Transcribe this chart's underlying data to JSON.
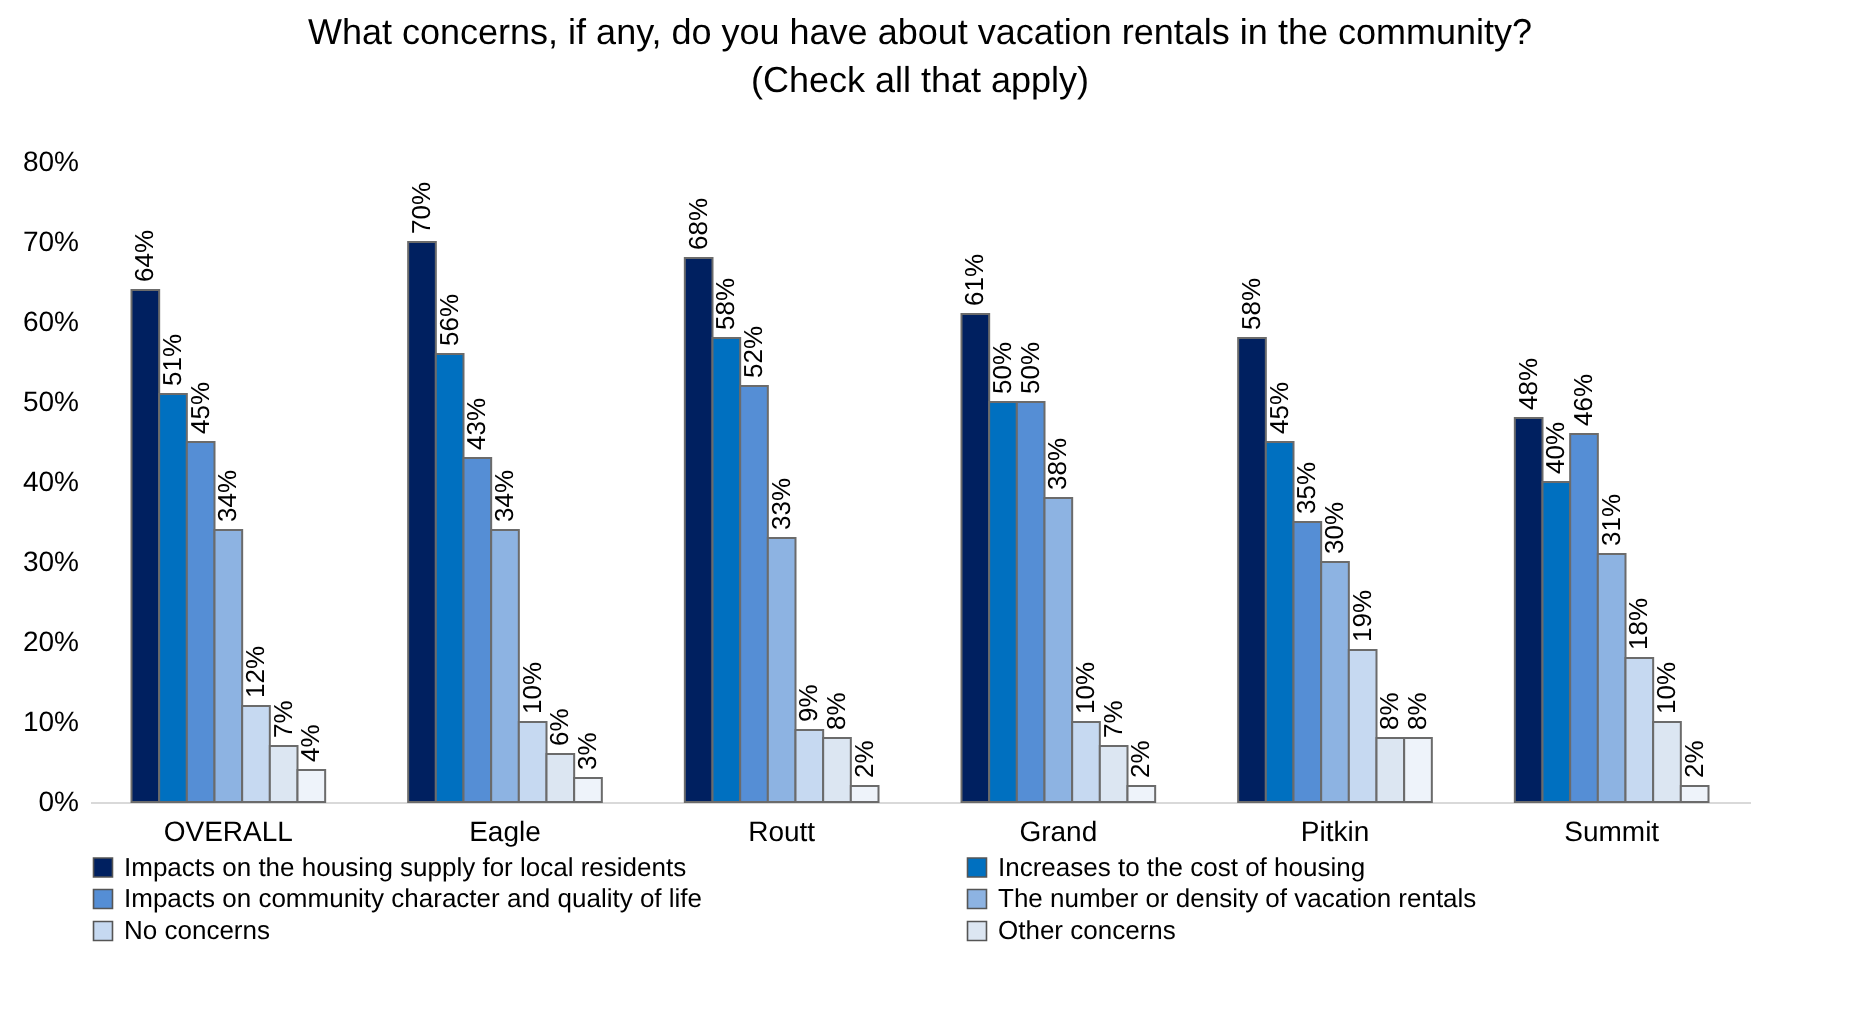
{
  "chart_data": {
    "type": "bar",
    "title": "What concerns, if any, do you have about vacation rentals in the community?",
    "subtitle": "(Check all that apply)",
    "categories": [
      "OVERALL",
      "Eagle",
      "Routt",
      "Grand",
      "Pitkin",
      "Summit"
    ],
    "series": [
      {
        "name": "Impacts on the housing supply for local residents",
        "color": "#002060",
        "values": [
          64,
          70,
          68,
          61,
          58,
          48
        ],
        "value_labels": [
          "64%",
          "70%",
          "68%",
          "61%",
          "58%",
          "48%"
        ]
      },
      {
        "name": "Increases to the cost of housing",
        "color": "#0070c0",
        "values": [
          51,
          56,
          58,
          50,
          45,
          40
        ],
        "value_labels": [
          "51%",
          "56%",
          "58%",
          "50%",
          "45%",
          "40%"
        ]
      },
      {
        "name": "Impacts on community character and quality of life",
        "color": "#558ed5",
        "values": [
          45,
          43,
          52,
          50,
          35,
          46
        ],
        "value_labels": [
          "45%",
          "43%",
          "52%",
          "50%",
          "35%",
          "46%"
        ]
      },
      {
        "name": "The number or density of vacation rentals",
        "color": "#8db3e2",
        "values": [
          34,
          34,
          33,
          38,
          30,
          31
        ],
        "value_labels": [
          "34%",
          "34%",
          "33%",
          "38%",
          "30%",
          "31%"
        ]
      },
      {
        "name": "No concerns",
        "color": "#c6d9f1",
        "values": [
          12,
          10,
          9,
          10,
          19,
          18
        ],
        "value_labels": [
          "12%",
          "10%",
          "9%",
          "10%",
          "19%",
          "18%"
        ]
      },
      {
        "name": "Other concerns",
        "color": "#dce6f2",
        "values": [
          7,
          6,
          8,
          7,
          8,
          10
        ],
        "value_labels": [
          "7%",
          "6%",
          "8%",
          "7%",
          "8%",
          "10%"
        ]
      },
      {
        "color": "#eef3fa",
        "values": [
          4,
          3,
          2,
          2,
          8,
          2
        ],
        "value_labels": [
          "4%",
          "3%",
          "2%",
          "2%",
          "8%",
          "2%"
        ]
      }
    ],
    "ylim": [
      0,
      80
    ],
    "yticks": [
      {
        "value": 0,
        "label": "0%"
      },
      {
        "value": 10,
        "label": "10%"
      },
      {
        "value": 20,
        "label": "20%"
      },
      {
        "value": 30,
        "label": "30%"
      },
      {
        "value": 40,
        "label": "40%"
      },
      {
        "value": 50,
        "label": "50%"
      },
      {
        "value": 60,
        "label": "60%"
      },
      {
        "value": 70,
        "label": "70%"
      },
      {
        "value": 80,
        "label": "80%"
      }
    ],
    "legend": "bottom"
  }
}
